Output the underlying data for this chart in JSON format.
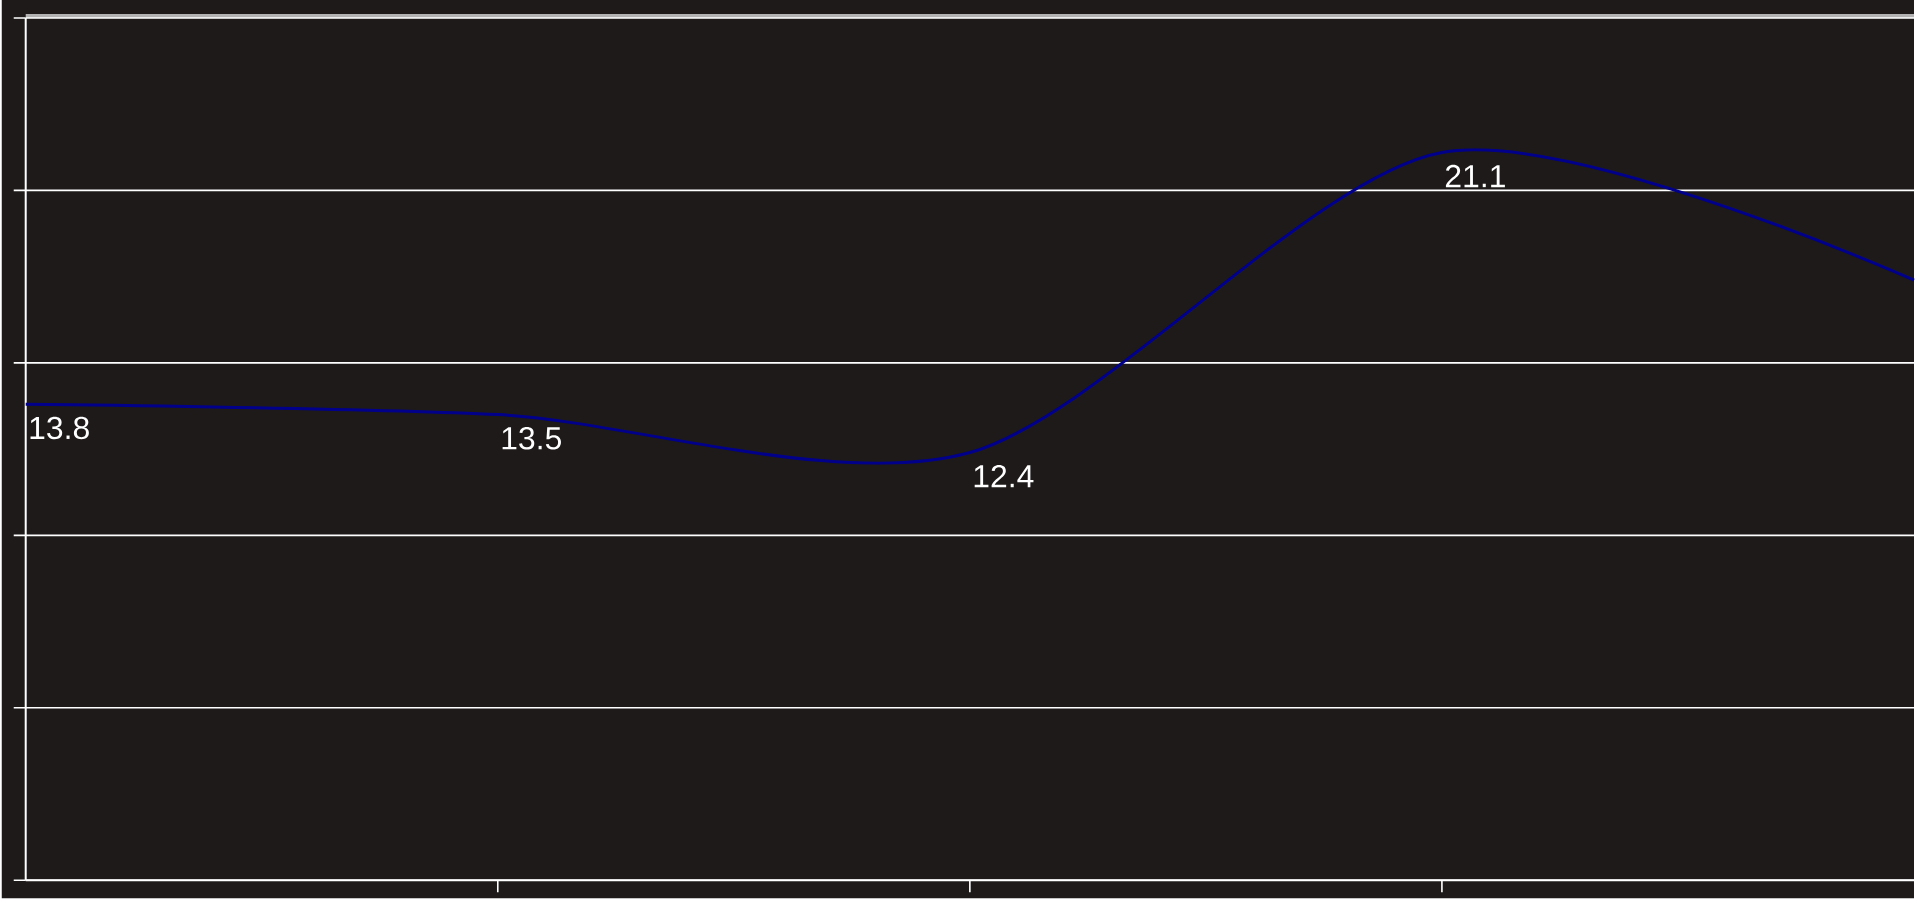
{
  "chart_data": {
    "type": "line",
    "categories": [
      null,
      null,
      null,
      null,
      null
    ],
    "series": [
      {
        "color": "#00008b",
        "values": [
          13.8,
          13.5,
          12.4,
          21.1,
          17.4
        ],
        "value_labels": [
          "13.8",
          "13.5",
          "12.4",
          "21.1",
          null
        ]
      }
    ],
    "ylim": [
      0,
      25
    ],
    "yticks": [
      {
        "value": 0,
        "label": null
      },
      {
        "value": 5,
        "label": null
      },
      {
        "value": 10,
        "label": null
      },
      {
        "value": 15,
        "label": null
      },
      {
        "value": 20,
        "label": null
      },
      {
        "value": 25,
        "label": null
      }
    ],
    "grid": "y",
    "marker": "none",
    "line_style": "solid"
  }
}
